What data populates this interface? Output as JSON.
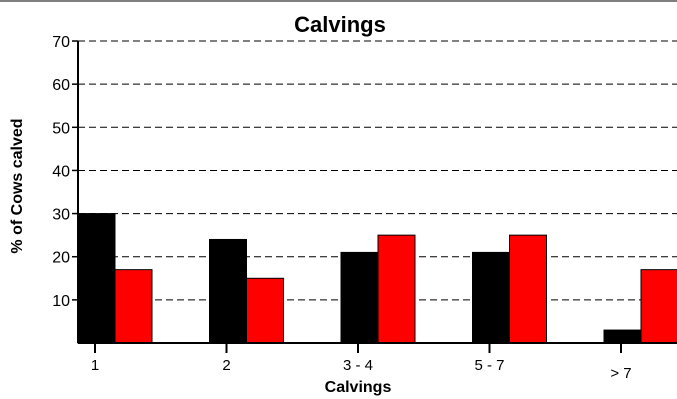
{
  "chart_data": {
    "type": "bar",
    "title": "Calvings",
    "xlabel": "Calvings",
    "ylabel": "% of Cows calved",
    "categories": [
      "1",
      "2",
      "3 - 4",
      "5 - 7",
      "> 7"
    ],
    "series": [
      {
        "values": [
          30,
          24,
          21,
          21,
          3
        ],
        "color": "#000000"
      },
      {
        "values": [
          17,
          15,
          25,
          25,
          17
        ],
        "color": "#ff0000"
      }
    ],
    "ylim": [
      0,
      70
    ],
    "yticks": [
      10,
      20,
      30,
      40,
      50,
      60,
      70
    ],
    "grid": true
  }
}
